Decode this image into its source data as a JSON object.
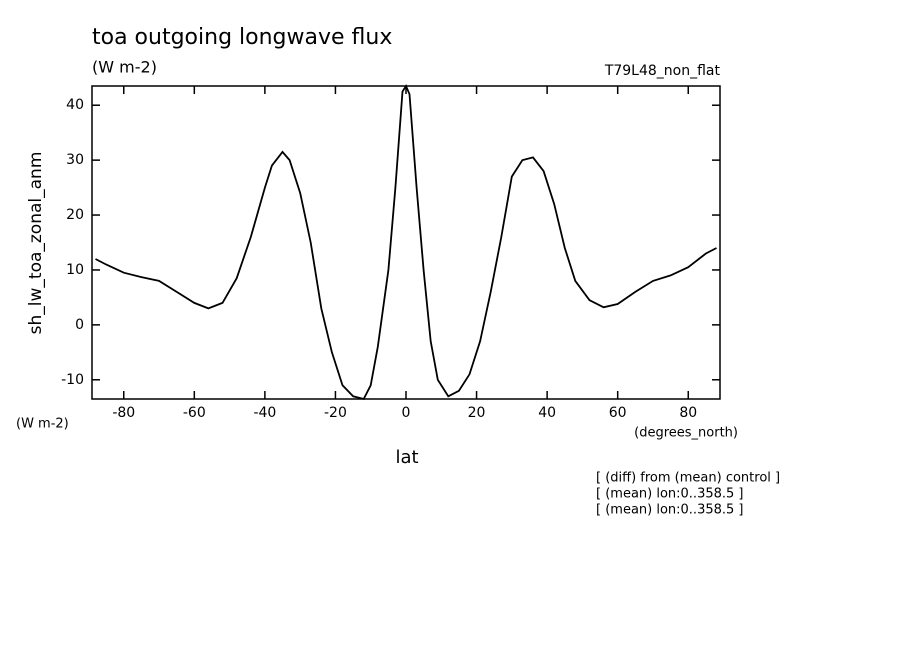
{
  "chart_data": {
    "type": "line",
    "title": "toa outgoing longwave flux",
    "subtitle": "(W m-2)",
    "run_label": "T79L48_non_flat",
    "y_label": "sh_lw_toa_zonal_anm",
    "y_units": "(W m-2)",
    "x_label": "lat",
    "x_units": "(degrees_north)",
    "notes": [
      "[ (diff) from (mean) control ]",
      "[ (mean) lon:0..358.5 ]",
      "[ (mean) lon:0..358.5 ]"
    ],
    "x": [
      -88,
      -85,
      -80,
      -75,
      -70,
      -65,
      -60,
      -56,
      -52,
      -48,
      -44,
      -40,
      -38,
      -35,
      -33,
      -30,
      -27,
      -24,
      -21,
      -18,
      -15,
      -12,
      -10,
      -8,
      -5,
      -3,
      -1,
      0,
      1,
      3,
      5,
      7,
      9,
      12,
      15,
      18,
      21,
      24,
      27,
      30,
      33,
      36,
      39,
      42,
      45,
      48,
      52,
      56,
      60,
      65,
      70,
      75,
      80,
      85,
      88
    ],
    "series": [
      {
        "color": "#000000",
        "values": [
          12,
          11,
          9.5,
          8.7,
          8,
          6,
          4,
          3,
          4,
          8.5,
          16,
          25,
          29,
          31.5,
          30,
          24,
          15,
          3,
          -5,
          -11,
          -13,
          -13.5,
          -11,
          -4,
          10,
          25,
          42.5,
          43.5,
          42,
          25,
          10,
          -3,
          -10,
          -13,
          -12,
          -9,
          -3,
          6,
          16,
          27,
          30,
          30.5,
          28,
          22,
          14,
          8,
          4.5,
          3.2,
          3.8,
          6,
          8,
          9,
          10.5,
          13,
          14
        ]
      }
    ],
    "xlim": [
      -89,
      89
    ],
    "ylim": [
      -13.5,
      43.5
    ],
    "xticks": [
      -80,
      -60,
      -40,
      -20,
      0,
      20,
      40,
      60,
      80
    ],
    "yticks": [
      -10,
      0,
      10,
      20,
      30,
      40
    ]
  }
}
